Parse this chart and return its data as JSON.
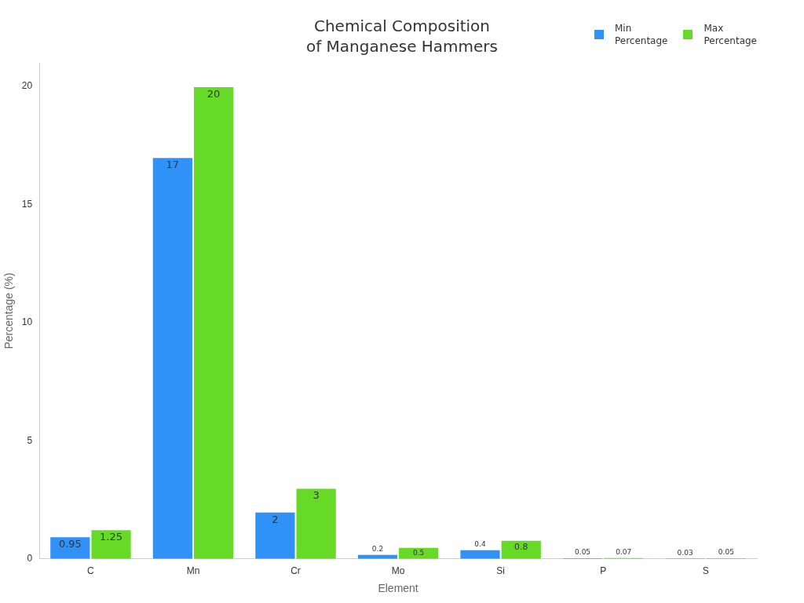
{
  "chart_data": {
    "type": "bar",
    "title": "Chemical Composition\nof Manganese Hammers",
    "xlabel": "Element",
    "ylabel": "Percentage (%)",
    "categories": [
      "C",
      "Mn",
      "Cr",
      "Mo",
      "Si",
      "P",
      "S"
    ],
    "series": [
      {
        "name": "Min\nPercentage",
        "color": "#3092f8",
        "values": [
          0.95,
          17,
          2,
          0.2,
          0.4,
          0.05,
          0.03
        ]
      },
      {
        "name": "Max\nPercentage",
        "color": "#66da26",
        "values": [
          1.25,
          20,
          3,
          0.5,
          0.8,
          0.07,
          0.05
        ]
      }
    ],
    "ylim": [
      0,
      21
    ],
    "yticks": [
      0,
      5,
      10,
      15,
      20
    ],
    "grid": false,
    "legend": "top right",
    "data_labels": true
  }
}
